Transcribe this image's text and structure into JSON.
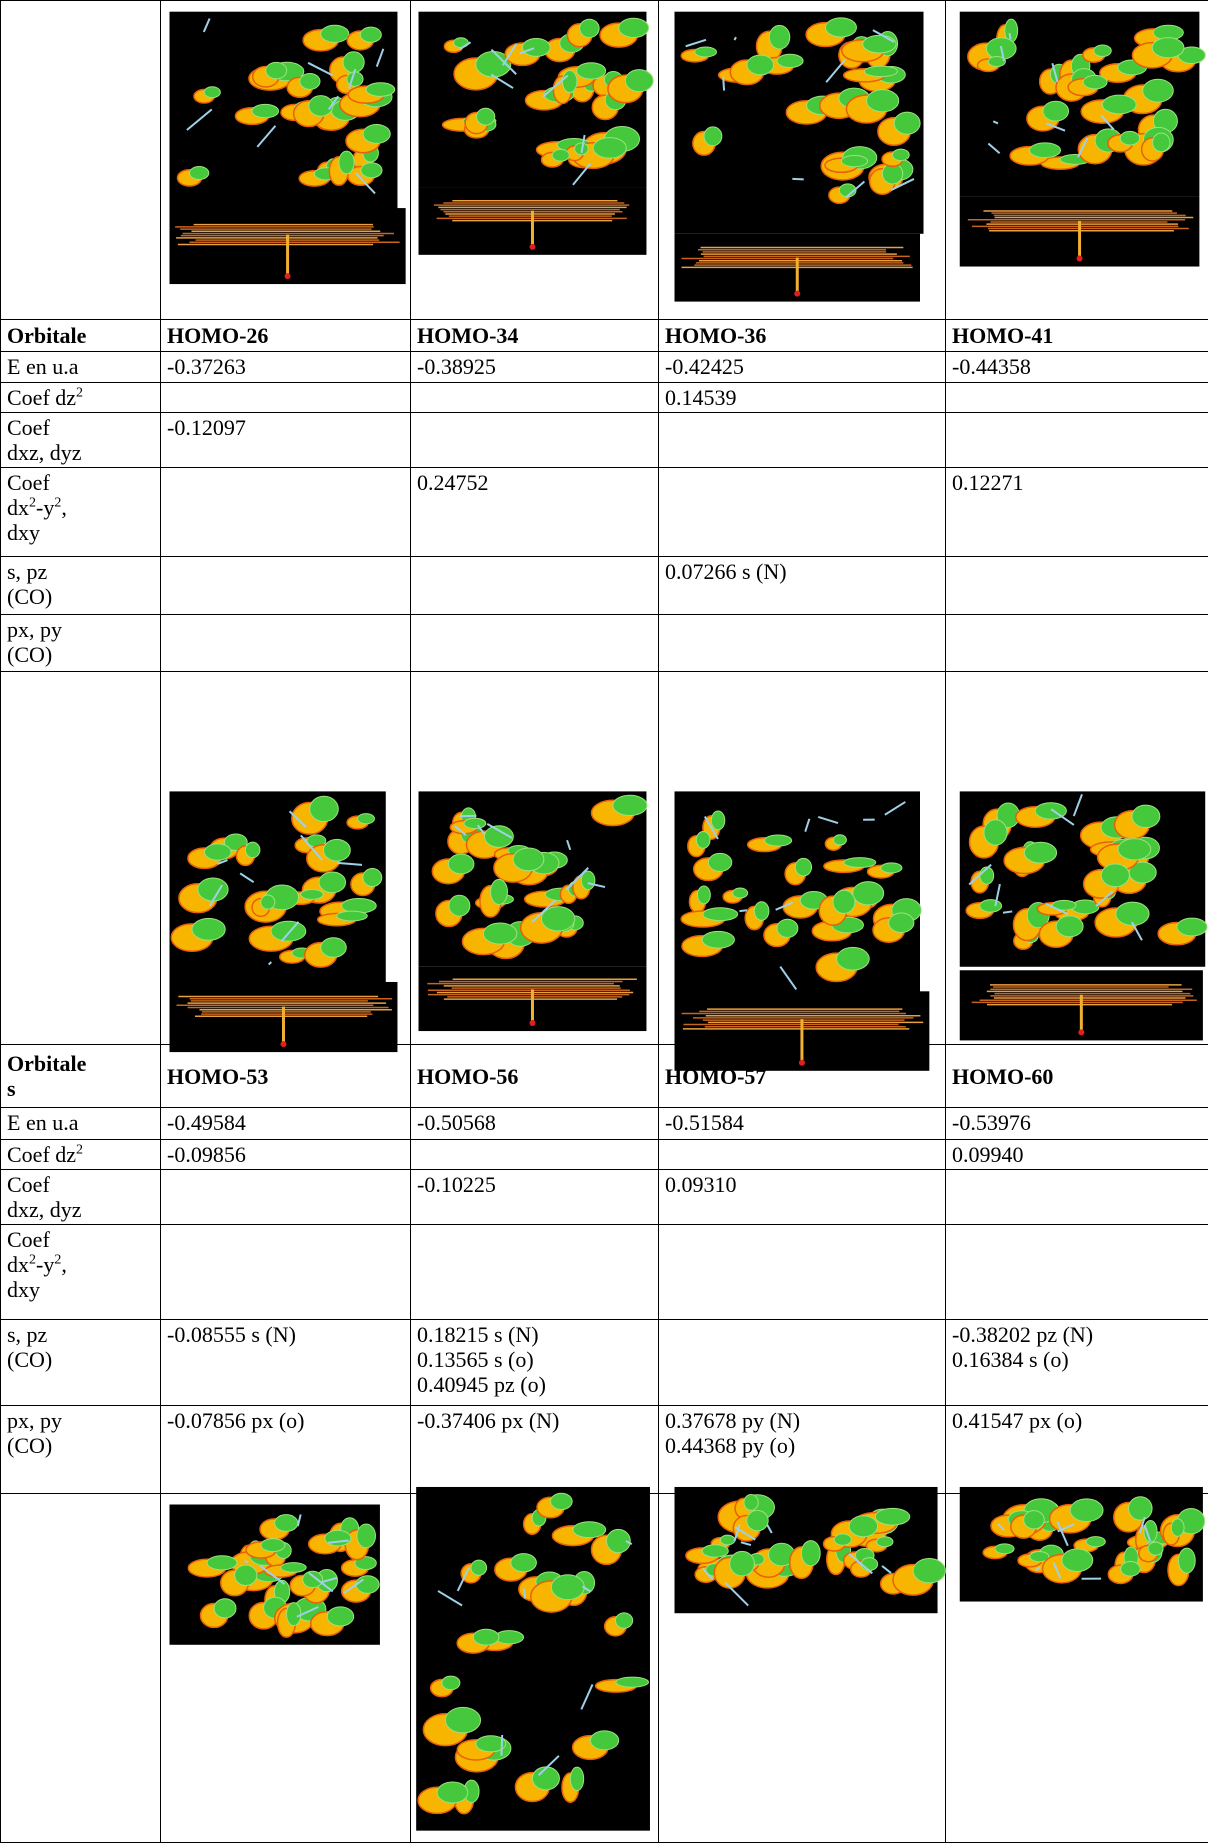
{
  "sections": [
    {
      "header": {
        "label": [
          "Orbitale"
        ],
        "orbitals": [
          "HOMO-26",
          "HOMO-34",
          "HOMO-36",
          "HOMO-41"
        ]
      },
      "rows": [
        {
          "label": [
            [
              {
                "text": "E en u.a"
              }
            ]
          ],
          "cells": [
            [
              "-0.37263"
            ],
            [
              "-0.38925"
            ],
            [
              "-0.42425"
            ],
            [
              "-0.44358"
            ]
          ]
        },
        {
          "label": [
            [
              {
                "text": "Coef dz"
              },
              {
                "sup": "2"
              }
            ]
          ],
          "cells": [
            [],
            [],
            [
              "0.14539"
            ],
            []
          ]
        },
        {
          "label": [
            [
              {
                "text": "Coef"
              }
            ],
            [
              {
                "text": "dxz, dyz"
              }
            ]
          ],
          "cells": [
            [
              "-0.12097"
            ],
            [],
            [],
            []
          ]
        },
        {
          "label": [
            [
              {
                "text": "Coef"
              }
            ],
            [
              {
                "text": "dx"
              },
              {
                "sup": "2"
              },
              {
                "text": "-y"
              },
              {
                "sup": "2"
              },
              {
                "text": ","
              }
            ],
            [
              {
                "text": "dxy"
              }
            ]
          ],
          "cells": [
            [],
            [
              "0.24752"
            ],
            [],
            [
              "0.12271"
            ]
          ]
        },
        {
          "label": [
            [
              {
                "text": "s, pz"
              }
            ],
            [
              {
                "text": "(CO)"
              }
            ]
          ],
          "cells": [
            [],
            [],
            [
              "0.07266 s (N)"
            ],
            []
          ]
        },
        {
          "label": [
            [
              {
                "text": "px, py"
              }
            ],
            [
              {
                "text": "(CO)"
              }
            ]
          ],
          "cells": [
            [],
            [],
            [],
            []
          ]
        }
      ]
    },
    {
      "header": {
        "label": [
          "Orbitale",
          "s"
        ],
        "orbitals": [
          "HOMO-53",
          "HOMO-56",
          "HOMO-57",
          "HOMO-60"
        ]
      },
      "rows": [
        {
          "label": [
            [
              {
                "text": "E en u.a"
              }
            ]
          ],
          "cells": [
            [
              "-0.49584"
            ],
            [
              "-0.50568"
            ],
            [
              "-0.51584"
            ],
            [
              "-0.53976"
            ]
          ]
        },
        {
          "label": [
            [
              {
                "text": "Coef dz"
              },
              {
                "sup": "2"
              }
            ]
          ],
          "cells": [
            [
              "-0.09856"
            ],
            [],
            [],
            [
              "0.09940"
            ]
          ]
        },
        {
          "label": [
            [
              {
                "text": "Coef"
              }
            ],
            [
              {
                "text": "dxz, dyz"
              }
            ]
          ],
          "cells": [
            [],
            [
              "-0.10225"
            ],
            [
              "0.09310"
            ],
            []
          ]
        },
        {
          "label": [
            [
              {
                "text": "Coef"
              }
            ],
            [
              {
                "text": "dx"
              },
              {
                "sup": "2"
              },
              {
                "text": "-y"
              },
              {
                "sup": "2"
              },
              {
                "text": ","
              }
            ],
            [
              {
                "text": "dxy"
              }
            ]
          ],
          "cells": [
            [],
            [],
            [],
            []
          ]
        },
        {
          "label": [
            [
              {
                "text": "s, pz"
              }
            ],
            [
              {
                "text": "(CO)"
              }
            ]
          ],
          "cells": [
            [
              "-0.08555 s (N)"
            ],
            [
              "0.18215 s (N)",
              "0.13565 s (o)",
              "0.40945 pz (o)"
            ],
            [],
            [
              "-0.38202 pz (N)",
              "0.16384 s (o)"
            ]
          ]
        },
        {
          "label": [
            [
              {
                "text": "px, py"
              }
            ],
            [
              {
                "text": "(CO)"
              }
            ]
          ],
          "cells": [
            [
              "-0.07856 px (o)"
            ],
            [
              "-0.37406 px (N)"
            ],
            [
              "0.37678 py (N)",
              "0.44368 py (o)"
            ],
            [
              "0.41547 px (o)"
            ]
          ]
        }
      ]
    }
  ]
}
